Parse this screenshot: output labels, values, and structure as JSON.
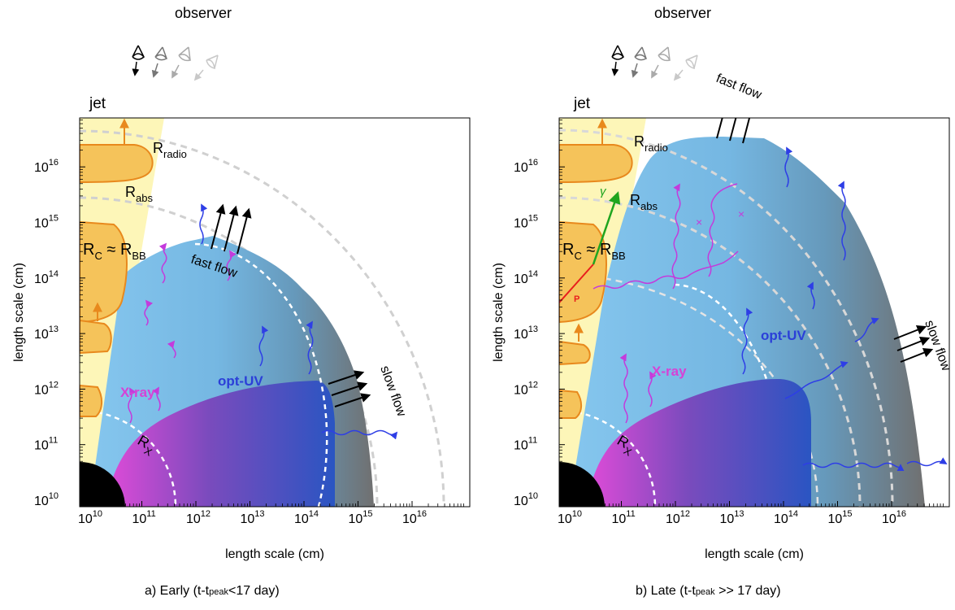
{
  "panels": [
    {
      "observer": "observer",
      "jet": "jet",
      "r_radio": {
        "main": "R",
        "sub": "radio"
      },
      "r_abs": {
        "main": "R",
        "sub": "abs"
      },
      "r_c_bb": {
        "c": "R",
        "c_sub": "C",
        "approx": " ≈ ",
        "bb": "R",
        "bb_sub": "BB"
      },
      "r_x": {
        "main": "R",
        "sub": "X"
      },
      "fast_flow": "fast flow",
      "slow_flow": "slow flow",
      "xray": "X-ray",
      "opt_uv": "opt-UV",
      "ylabel": "length scale (cm)",
      "xlabel": "length scale (cm)",
      "x_ticks": [
        "10",
        "10",
        "10",
        "10",
        "10",
        "10",
        "10"
      ],
      "x_exps": [
        "10",
        "11",
        "12",
        "13",
        "14",
        "15",
        "16"
      ],
      "y_ticks": [
        "10",
        "10",
        "10",
        "10",
        "10",
        "10",
        "10"
      ],
      "y_exps": [
        "10",
        "11",
        "12",
        "13",
        "14",
        "15",
        "16"
      ],
      "caption_prefix": "a) Early (t-t",
      "caption_sub": "peak",
      "caption_suffix": "<17 day)"
    },
    {
      "observer": "observer",
      "jet": "jet",
      "r_radio": {
        "main": "R",
        "sub": "radio"
      },
      "r_abs": {
        "main": "R",
        "sub": "abs"
      },
      "r_c_bb": {
        "c": "R",
        "c_sub": "C",
        "approx": " ≈ ",
        "bb": "R",
        "bb_sub": "BB"
      },
      "r_x": {
        "main": "R",
        "sub": "X"
      },
      "fast_flow": "fast flow",
      "slow_flow": "slow flow",
      "xray": "X-ray",
      "opt_uv": "opt-UV",
      "photon_label": "γ",
      "proton_label": "P",
      "ylabel": "length scale (cm)",
      "xlabel": "length scale (cm)",
      "x_ticks": [
        "10",
        "10",
        "10",
        "10",
        "10",
        "10",
        "10"
      ],
      "x_exps": [
        "10",
        "11",
        "12",
        "13",
        "14",
        "15",
        "16"
      ],
      "y_ticks": [
        "10",
        "10",
        "10",
        "10",
        "10",
        "10",
        "10"
      ],
      "y_exps": [
        "10",
        "11",
        "12",
        "13",
        "14",
        "15",
        "16"
      ],
      "caption_prefix": "b) Late (t-t",
      "caption_sub": "peak",
      "caption_suffix": " >> 17 day)"
    }
  ],
  "colors": {
    "jet": "#fdf6b8",
    "blob_fill": "#f5c35a",
    "blob_edge": "#e8891d",
    "outflow": "#7fc0e8",
    "outflow_dark": "#777777",
    "xray": "#d642d6",
    "opt": "#2b52c7",
    "core": "#000000",
    "dash": "#cccccc",
    "wave_blue": "#2e3ee6",
    "wave_magenta": "#c33bdc"
  }
}
